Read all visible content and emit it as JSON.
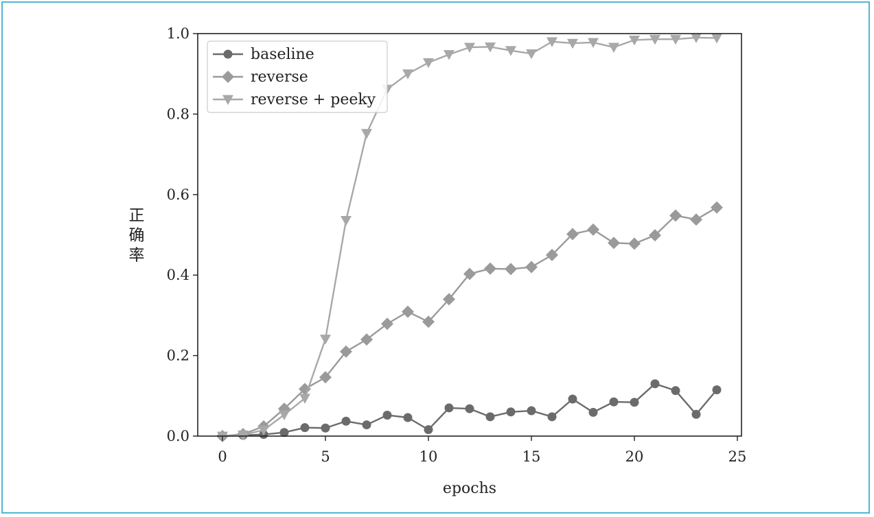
{
  "chart_data": {
    "type": "line",
    "xlabel": "epochs",
    "ylabel": "正确率",
    "xlim": [
      -1.2,
      25.2
    ],
    "ylim": [
      0.0,
      1.0
    ],
    "xticks": [
      0,
      5,
      10,
      15,
      20,
      25
    ],
    "xtick_labels": [
      "0",
      "5",
      "10",
      "15",
      "20",
      "25"
    ],
    "yticks": [
      0.0,
      0.2,
      0.4,
      0.6,
      0.8,
      1.0
    ],
    "ytick_labels": [
      "0.0",
      "0.2",
      "0.4",
      "0.6",
      "0.8",
      "1.0"
    ],
    "grid": false,
    "legend_position": "top-left",
    "x": [
      0,
      1,
      2,
      3,
      4,
      5,
      6,
      7,
      8,
      9,
      10,
      11,
      12,
      13,
      14,
      15,
      16,
      17,
      18,
      19,
      20,
      21,
      22,
      23,
      24
    ],
    "series": [
      {
        "name": "baseline",
        "marker": "circle",
        "color": "#6b6b6b",
        "values": [
          0.0,
          0.002,
          0.004,
          0.009,
          0.021,
          0.02,
          0.037,
          0.028,
          0.052,
          0.046,
          0.016,
          0.07,
          0.068,
          0.048,
          0.06,
          0.063,
          0.048,
          0.092,
          0.059,
          0.085,
          0.084,
          0.13,
          0.113,
          0.054,
          0.115
        ]
      },
      {
        "name": "reverse",
        "marker": "diamond",
        "color": "#9a9a9a",
        "values": [
          0.0,
          0.005,
          0.024,
          0.068,
          0.117,
          0.146,
          0.21,
          0.24,
          0.279,
          0.309,
          0.284,
          0.34,
          0.403,
          0.416,
          0.415,
          0.42,
          0.45,
          0.502,
          0.513,
          0.48,
          0.478,
          0.499,
          0.548,
          0.538,
          0.568
        ]
      },
      {
        "name": "reverse + peeky",
        "marker": "triangle-down",
        "color": "#a8a8a8",
        "values": [
          0.0,
          0.003,
          0.015,
          0.053,
          0.094,
          0.241,
          0.536,
          0.752,
          0.862,
          0.9,
          0.928,
          0.948,
          0.966,
          0.967,
          0.958,
          0.95,
          0.98,
          0.976,
          0.978,
          0.966,
          0.984,
          0.986,
          0.986,
          0.99,
          0.989
        ]
      }
    ]
  }
}
